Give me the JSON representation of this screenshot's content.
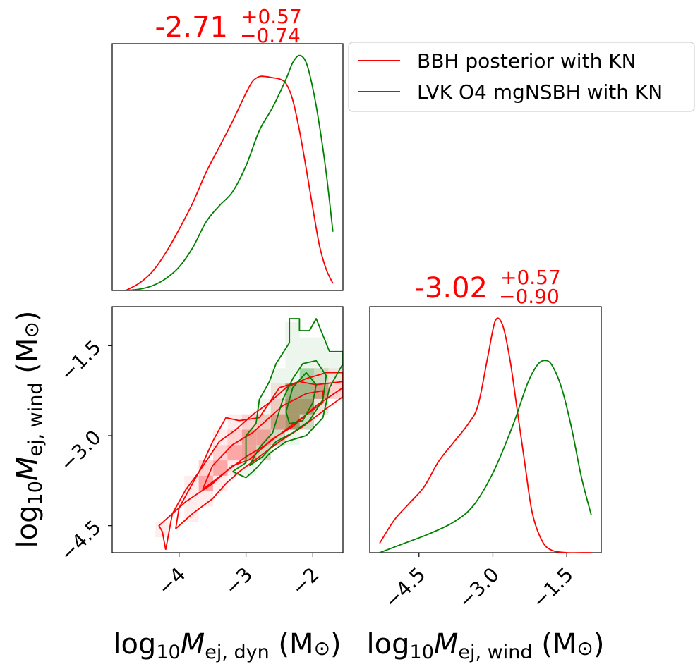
{
  "colors": {
    "bbh": "#ff0000",
    "lvk": "#008000",
    "frame": "#000000"
  },
  "legend": {
    "entries": [
      {
        "label": "BBH posterior with KN",
        "color": "#ff0000"
      },
      {
        "label": "LVK O4 mgNSBH with KN",
        "color": "#008000"
      }
    ],
    "placement": "top-right"
  },
  "summaries": {
    "dyn": {
      "median": "-2.71",
      "plus": "+0.57",
      "minus": "−0.74"
    },
    "wind": {
      "median": "-3.02",
      "plus": "+0.57",
      "minus": "−0.90"
    }
  },
  "labels": {
    "x_dyn": {
      "prefix": "log",
      "sub10": "10",
      "M": "M",
      "sub": "ej, dyn",
      "unit": " (M",
      "sun": "⊙",
      "close": ")"
    },
    "x_wind": {
      "prefix": "log",
      "sub10": "10",
      "M": "M",
      "sub": "ej, wind",
      "unit": " (M",
      "sun": "⊙",
      "close": ")"
    },
    "y_wind": {
      "prefix": "log",
      "sub10": "10",
      "M": "M",
      "sub": "ej, wind",
      "unit": " (M",
      "sun": "⊙",
      "close": ")"
    }
  },
  "ticks": {
    "dyn": [
      {
        "v": -4,
        "label": "−4"
      },
      {
        "v": -3,
        "label": "−3"
      },
      {
        "v": -2,
        "label": "−2"
      }
    ],
    "wind": [
      {
        "v": -4.5,
        "label": "−4.5"
      },
      {
        "v": -3.0,
        "label": "−3.0"
      },
      {
        "v": -1.5,
        "label": "−1.5"
      }
    ]
  },
  "chart_data": [
    {
      "type": "line",
      "panel": "marginal_dyn",
      "xlabel": "log10 M_ej,dyn (M_sun)",
      "xlim": [
        -5.0,
        -1.55
      ],
      "ylim": [
        0,
        1.05
      ],
      "series": [
        {
          "name": "BBH posterior with KN",
          "x": [
            -4.8,
            -4.6,
            -4.4,
            -4.2,
            -4.0,
            -3.8,
            -3.6,
            -3.4,
            -3.2,
            -3.0,
            -2.9,
            -2.8,
            -2.7,
            -2.6,
            -2.5,
            -2.4,
            -2.3,
            -2.2,
            -2.1,
            -2.0,
            -1.9,
            -1.8,
            -1.7
          ],
          "y": [
            0.0,
            0.03,
            0.08,
            0.16,
            0.26,
            0.37,
            0.5,
            0.61,
            0.72,
            0.84,
            0.89,
            0.91,
            0.91,
            0.905,
            0.9,
            0.88,
            0.81,
            0.68,
            0.52,
            0.35,
            0.19,
            0.09,
            0.03
          ]
        },
        {
          "name": "LVK O4 mgNSBH with KN",
          "x": [
            -4.8,
            -4.6,
            -4.4,
            -4.2,
            -4.0,
            -3.8,
            -3.6,
            -3.4,
            -3.2,
            -3.0,
            -2.8,
            -2.6,
            -2.4,
            -2.3,
            -2.2,
            -2.1,
            -2.0,
            -1.9,
            -1.8,
            -1.7
          ],
          "y": [
            0.0,
            0.005,
            0.02,
            0.05,
            0.1,
            0.18,
            0.29,
            0.36,
            0.42,
            0.53,
            0.68,
            0.78,
            0.9,
            0.97,
            1.0,
            0.97,
            0.86,
            0.7,
            0.5,
            0.25
          ]
        }
      ]
    },
    {
      "type": "line",
      "panel": "marginal_wind",
      "xlabel": "log10 M_ej,wind (M_sun)",
      "xlim": [
        -5.5,
        -0.8
      ],
      "ylim": [
        0,
        1.05
      ],
      "series": [
        {
          "name": "BBH posterior with KN",
          "x": [
            -5.3,
            -5.0,
            -4.7,
            -4.4,
            -4.1,
            -3.8,
            -3.5,
            -3.3,
            -3.1,
            -2.95,
            -2.8,
            -2.65,
            -2.5,
            -2.35,
            -2.2,
            -2.0,
            -1.8,
            -1.5,
            -1.2,
            -1.0
          ],
          "y": [
            0.04,
            0.14,
            0.21,
            0.28,
            0.39,
            0.47,
            0.55,
            0.63,
            0.84,
            0.99,
            0.97,
            0.82,
            0.6,
            0.38,
            0.17,
            0.05,
            0.01,
            0.0,
            0.0,
            0.0
          ]
        },
        {
          "name": "LVK O4 mgNSBH with KN",
          "x": [
            -5.3,
            -4.8,
            -4.3,
            -3.8,
            -3.4,
            -3.0,
            -2.6,
            -2.3,
            -2.1,
            -1.95,
            -1.8,
            -1.6,
            -1.4,
            -1.2,
            -1.0
          ],
          "y": [
            0.0,
            0.04,
            0.08,
            0.13,
            0.2,
            0.34,
            0.54,
            0.72,
            0.8,
            0.82,
            0.8,
            0.7,
            0.53,
            0.32,
            0.16
          ]
        }
      ]
    },
    {
      "type": "heatmap",
      "panel": "joint",
      "xlabel": "log10 M_ej,dyn (M_sun)",
      "ylabel": "log10 M_ej,wind (M_sun)",
      "xlim": [
        -5.0,
        -1.55
      ],
      "ylim": [
        -4.95,
        -0.85
      ],
      "series": [
        {
          "name": "BBH posterior with KN",
          "contours": [
            {
              "level": "outer",
              "x": [
                -4.2,
                -4.25,
                -4.3,
                -3.9,
                -3.5,
                -3.2,
                -2.95,
                -2.6,
                -2.3,
                -1.95,
                -1.55,
                -1.55,
                -1.95,
                -2.2,
                -2.5,
                -2.8,
                -3.1,
                -3.3,
                -3.5,
                -3.7,
                -3.9,
                -4.1,
                -4.2
              ],
              "y": [
                -4.9,
                -4.6,
                -4.5,
                -4.1,
                -3.8,
                -3.5,
                -3.4,
                -3.05,
                -2.85,
                -2.5,
                -2.2,
                -2.1,
                -2.15,
                -2.1,
                -2.2,
                -2.7,
                -2.75,
                -2.7,
                -3.1,
                -3.6,
                -3.9,
                -4.3,
                -4.9
              ]
            },
            {
              "level": "middle",
              "x": [
                -4.05,
                -3.8,
                -3.5,
                -3.3,
                -3.1,
                -2.8,
                -2.5,
                -2.15,
                -1.8,
                -1.55,
                -1.55,
                -1.8,
                -2.1,
                -2.4,
                -2.65,
                -2.9,
                -3.15,
                -3.4,
                -3.7,
                -4.0,
                -4.05
              ],
              "y": [
                -4.55,
                -4.3,
                -4.05,
                -3.8,
                -3.6,
                -3.35,
                -3.1,
                -2.85,
                -2.55,
                -2.35,
                -1.95,
                -1.95,
                -2.05,
                -2.2,
                -2.45,
                -2.65,
                -2.9,
                -3.1,
                -3.6,
                -4.2,
                -4.55
              ]
            },
            {
              "level": "inner",
              "x": [
                -3.65,
                -3.3,
                -3.0,
                -2.7,
                -2.4,
                -2.1,
                -1.85,
                -1.85,
                -2.1,
                -2.45,
                -2.7,
                -2.9,
                -3.2,
                -3.5,
                -3.65
              ],
              "y": [
                -3.9,
                -3.6,
                -3.35,
                -3.15,
                -2.9,
                -2.65,
                -2.45,
                -2.25,
                -2.3,
                -2.5,
                -2.75,
                -2.95,
                -3.15,
                -3.5,
                -3.9
              ]
            }
          ]
        },
        {
          "name": "LVK O4 mgNSBH with KN",
          "contours": [
            {
              "level": "outer",
              "x": [
                -3.2,
                -3.0,
                -3.0,
                -2.85,
                -2.8,
                -2.65,
                -2.55,
                -2.35,
                -2.35,
                -2.2,
                -2.2,
                -2.05,
                -1.95,
                -1.95,
                -1.75,
                -1.55,
                -1.55,
                -1.75,
                -1.85,
                -2.1,
                -2.4,
                -2.65,
                -2.85,
                -3.0,
                -3.2
              ],
              "y": [
                -3.6,
                -3.45,
                -3.0,
                -2.8,
                -2.4,
                -2.1,
                -1.8,
                -1.45,
                -1.05,
                -1.05,
                -1.25,
                -1.25,
                -1.05,
                -1.05,
                -1.6,
                -1.6,
                -1.8,
                -2.2,
                -2.7,
                -3.0,
                -3.1,
                -3.3,
                -3.55,
                -3.7,
                -3.6
              ]
            },
            {
              "level": "middle",
              "x": [
                -2.95,
                -2.8,
                -2.6,
                -2.45,
                -2.3,
                -2.15,
                -1.95,
                -1.8,
                -1.85,
                -2.05,
                -2.3,
                -2.55,
                -2.75,
                -2.95
              ],
              "y": [
                -3.5,
                -3.2,
                -2.95,
                -2.4,
                -2.05,
                -1.8,
                -1.75,
                -2.0,
                -2.4,
                -2.75,
                -2.95,
                -3.1,
                -3.35,
                -3.5
              ]
            },
            {
              "level": "inner",
              "x": [
                -2.4,
                -2.3,
                -2.1,
                -1.95,
                -2.0,
                -2.15,
                -2.35,
                -2.4
              ],
              "y": [
                -2.6,
                -2.2,
                -1.95,
                -2.15,
                -2.45,
                -2.75,
                -2.8,
                -2.6
              ]
            }
          ]
        }
      ]
    }
  ]
}
